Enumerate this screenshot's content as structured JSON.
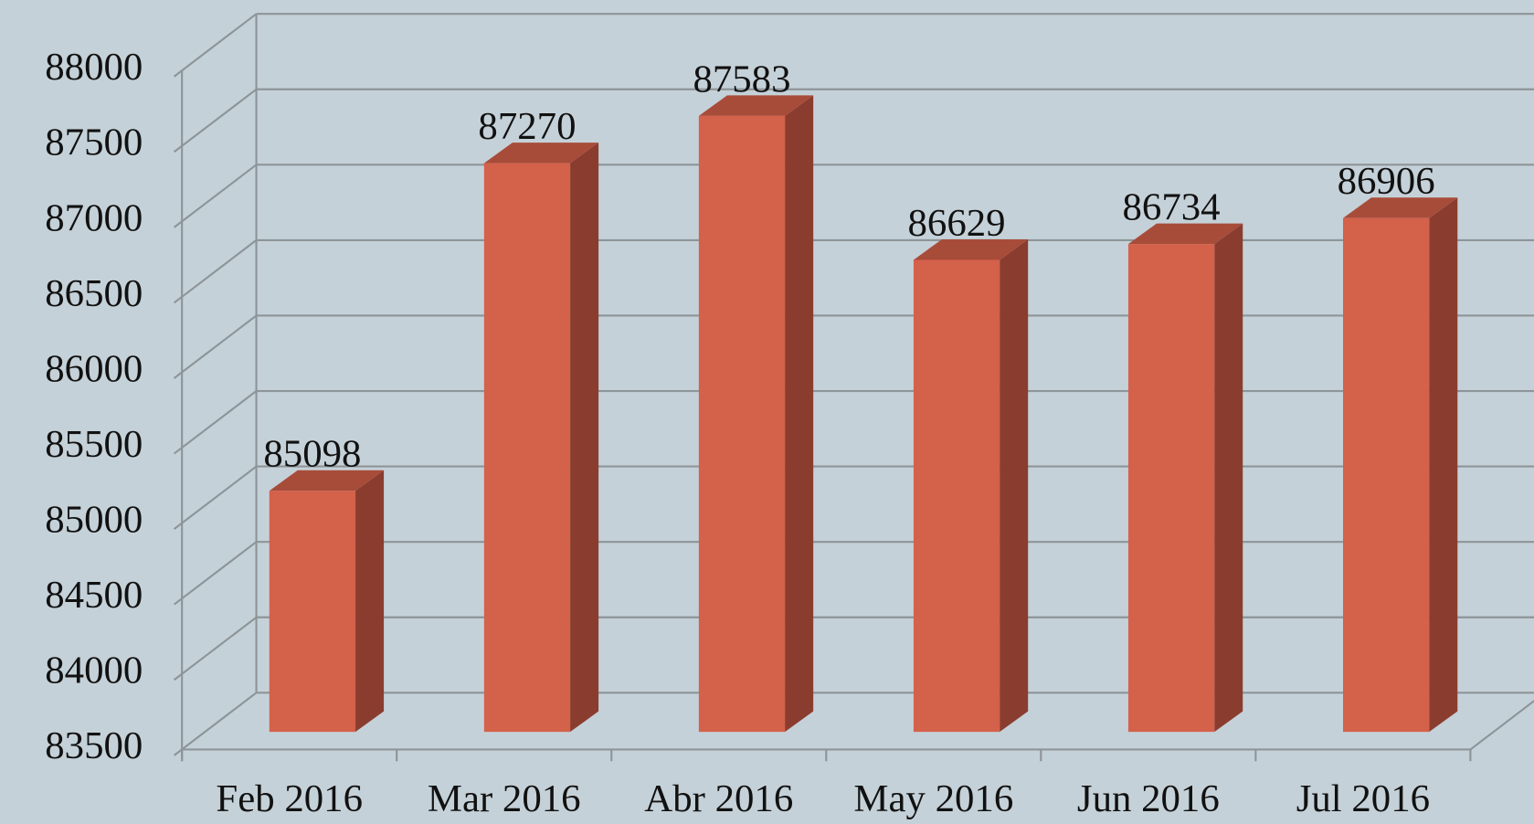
{
  "chart_data": {
    "type": "bar",
    "categories": [
      "Feb 2016",
      "Mar 2016",
      "Abr 2016",
      "May 2016",
      "Jun 2016",
      "Jul 2016"
    ],
    "values": [
      85098,
      87270,
      87583,
      86629,
      86734,
      86906
    ],
    "color": "#d4614a",
    "ylim": [
      83500,
      88000
    ],
    "yticks": [
      83500,
      84000,
      84500,
      85000,
      85500,
      86000,
      86500,
      87000,
      87500,
      88000
    ],
    "grid": true
  }
}
